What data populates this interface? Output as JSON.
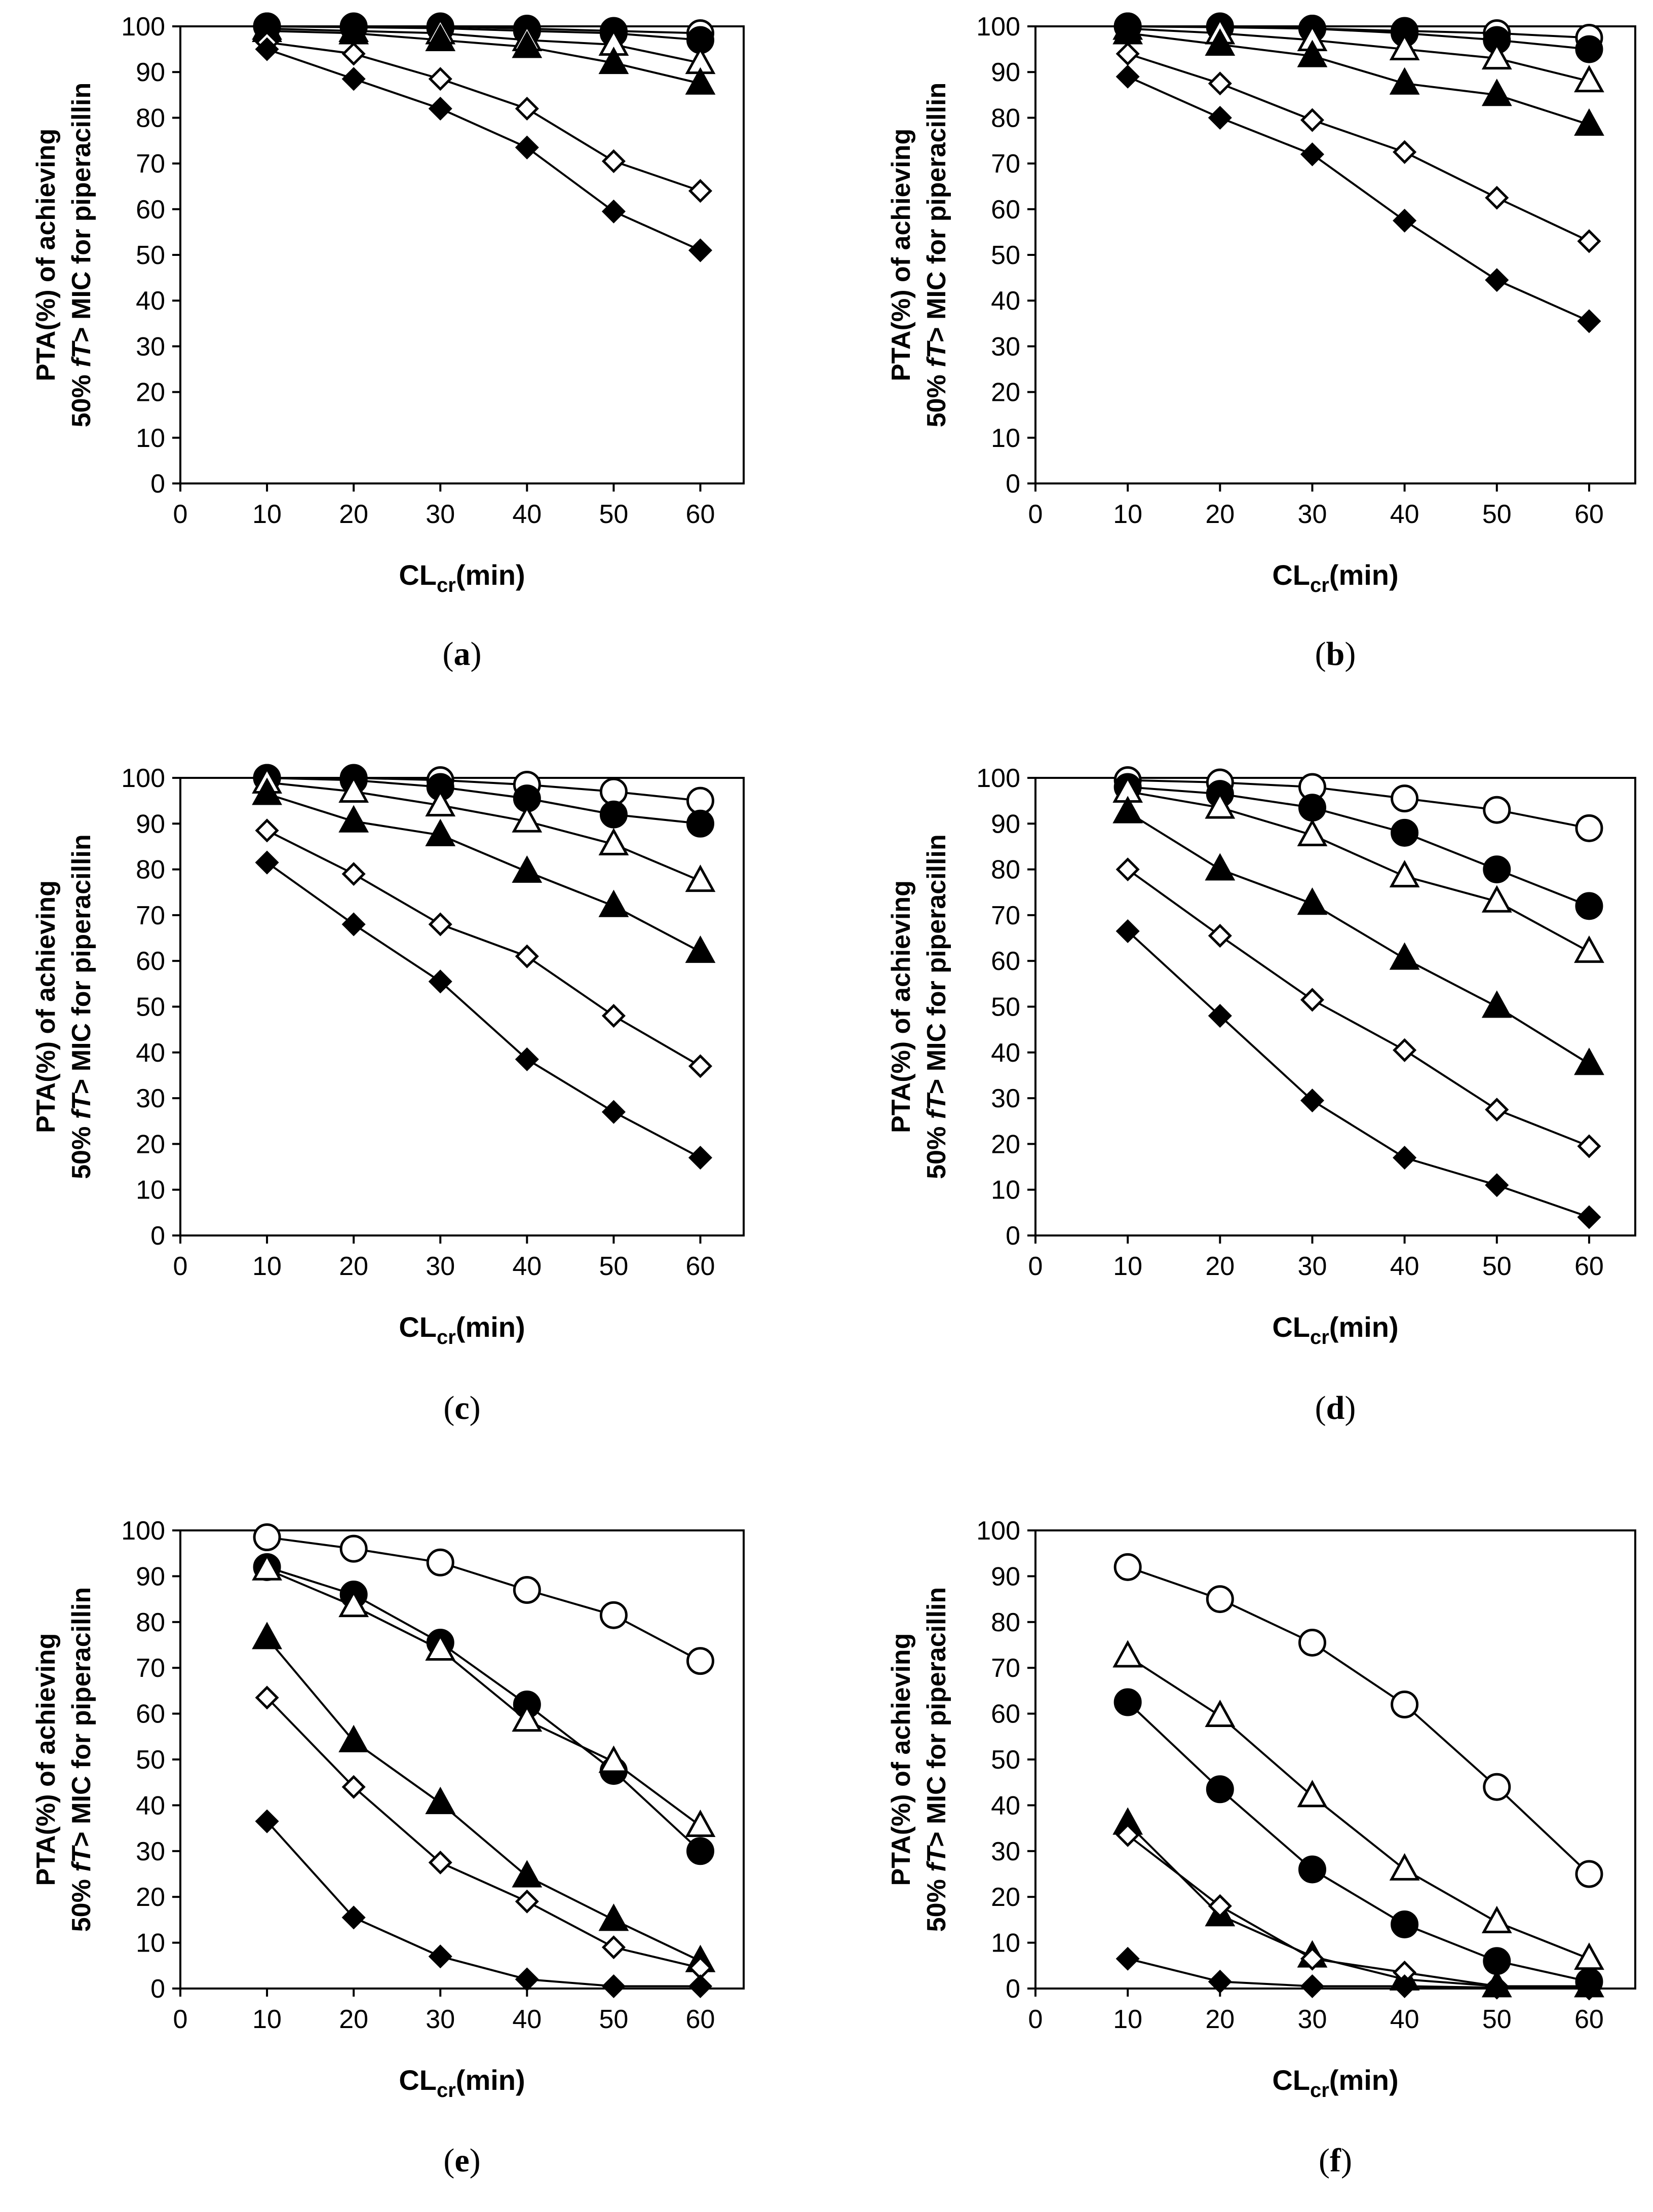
{
  "figure": {
    "ylabel_line1": "PTA(%) of achieving",
    "ylabel_line2_a": "50% ",
    "ylabel_line2_ft": "fT",
    "ylabel_line2_b": "> MIC for piperacillin",
    "xlabel_main": "CL",
    "xlabel_sub": "cr",
    "xlabel_suffix": "(min)"
  },
  "chart_data": [
    {
      "id": "a",
      "panel_label": "(a)",
      "type": "line",
      "x": [
        10,
        20,
        30,
        40,
        50,
        60
      ],
      "xlim": [
        0,
        65
      ],
      "ylim": [
        0,
        100
      ],
      "xticks": [
        0,
        10,
        20,
        30,
        40,
        50,
        60
      ],
      "yticks": [
        0,
        10,
        20,
        30,
        40,
        50,
        60,
        70,
        80,
        90,
        100
      ],
      "series": [
        {
          "marker": "open-circle",
          "values": [
            100,
            100,
            100,
            99.5,
            99,
            98.5
          ]
        },
        {
          "marker": "filled-circle",
          "values": [
            100,
            99.8,
            99.6,
            99,
            98.5,
            97
          ]
        },
        {
          "marker": "open-triangle",
          "values": [
            99.5,
            99,
            98.5,
            97,
            96,
            92
          ]
        },
        {
          "marker": "filled-triangle",
          "values": [
            99,
            98.5,
            97,
            95.5,
            92,
            87.5
          ]
        },
        {
          "marker": "open-diamond",
          "values": [
            96.5,
            94,
            88.5,
            82,
            70.5,
            64
          ]
        },
        {
          "marker": "filled-diamond",
          "values": [
            95,
            88.5,
            82,
            73.5,
            59.5,
            51
          ]
        }
      ]
    },
    {
      "id": "b",
      "panel_label": "(b)",
      "type": "line",
      "x": [
        10,
        20,
        30,
        40,
        50,
        60
      ],
      "xlim": [
        0,
        65
      ],
      "ylim": [
        0,
        100
      ],
      "xticks": [
        0,
        10,
        20,
        30,
        40,
        50,
        60
      ],
      "yticks": [
        0,
        10,
        20,
        30,
        40,
        50,
        60,
        70,
        80,
        90,
        100
      ],
      "series": [
        {
          "marker": "open-circle",
          "values": [
            100,
            100,
            99.5,
            99,
            98.5,
            97.5
          ]
        },
        {
          "marker": "filled-circle",
          "values": [
            100,
            99.8,
            99.5,
            98.5,
            97,
            95
          ]
        },
        {
          "marker": "open-triangle",
          "values": [
            99.5,
            98.5,
            97,
            95,
            93,
            88
          ]
        },
        {
          "marker": "filled-triangle",
          "values": [
            98.5,
            96,
            93.5,
            87.5,
            85,
            78.5
          ]
        },
        {
          "marker": "open-diamond",
          "values": [
            94,
            87.5,
            79.5,
            72.5,
            62.5,
            53
          ]
        },
        {
          "marker": "filled-diamond",
          "values": [
            89,
            80,
            72,
            57.5,
            44.5,
            35.5
          ]
        }
      ]
    },
    {
      "id": "c",
      "panel_label": "(c)",
      "type": "line",
      "x": [
        10,
        20,
        30,
        40,
        50,
        60
      ],
      "xlim": [
        0,
        65
      ],
      "ylim": [
        0,
        100
      ],
      "xticks": [
        0,
        10,
        20,
        30,
        40,
        50,
        60
      ],
      "yticks": [
        0,
        10,
        20,
        30,
        40,
        50,
        60,
        70,
        80,
        90,
        100
      ],
      "series": [
        {
          "marker": "open-circle",
          "values": [
            100,
            100,
            99.5,
            98.5,
            97,
            95
          ]
        },
        {
          "marker": "filled-circle",
          "values": [
            100,
            99.5,
            98,
            95.5,
            92,
            90
          ]
        },
        {
          "marker": "open-triangle",
          "values": [
            99,
            97,
            94,
            90.5,
            85.5,
            77.5
          ]
        },
        {
          "marker": "filled-triangle",
          "values": [
            96.5,
            90.5,
            87.5,
            79.5,
            72,
            62
          ]
        },
        {
          "marker": "open-diamond",
          "values": [
            88.5,
            79,
            68,
            61,
            48,
            37
          ]
        },
        {
          "marker": "filled-diamond",
          "values": [
            81.5,
            68,
            55.5,
            38.5,
            27,
            17
          ]
        }
      ]
    },
    {
      "id": "d",
      "panel_label": "(d)",
      "type": "line",
      "x": [
        10,
        20,
        30,
        40,
        50,
        60
      ],
      "xlim": [
        0,
        65
      ],
      "ylim": [
        0,
        100
      ],
      "xticks": [
        0,
        10,
        20,
        30,
        40,
        50,
        60
      ],
      "yticks": [
        0,
        10,
        20,
        30,
        40,
        50,
        60,
        70,
        80,
        90,
        100
      ],
      "series": [
        {
          "marker": "open-circle",
          "values": [
            99.5,
            99,
            98,
            95.5,
            93,
            89
          ]
        },
        {
          "marker": "filled-circle",
          "values": [
            98,
            96.5,
            93.5,
            88,
            80,
            72
          ]
        },
        {
          "marker": "open-triangle",
          "values": [
            97,
            93.5,
            87.5,
            78.5,
            73,
            62
          ]
        },
        {
          "marker": "filled-triangle",
          "values": [
            92.5,
            80,
            72.5,
            60.5,
            50,
            37.5
          ]
        },
        {
          "marker": "open-diamond",
          "values": [
            80,
            65.5,
            51.5,
            40.5,
            27.5,
            19.5
          ]
        },
        {
          "marker": "filled-diamond",
          "values": [
            66.5,
            48,
            29.5,
            17,
            11,
            4
          ]
        }
      ]
    },
    {
      "id": "e",
      "panel_label": "(e)",
      "type": "line",
      "x": [
        10,
        20,
        30,
        40,
        50,
        60
      ],
      "xlim": [
        0,
        65
      ],
      "ylim": [
        0,
        100
      ],
      "xticks": [
        0,
        10,
        20,
        30,
        40,
        50,
        60
      ],
      "yticks": [
        0,
        10,
        20,
        30,
        40,
        50,
        60,
        70,
        80,
        90,
        100
      ],
      "series": [
        {
          "marker": "open-circle",
          "values": [
            98.5,
            96,
            93,
            87,
            81.5,
            71.5
          ]
        },
        {
          "marker": "filled-circle",
          "values": [
            92,
            86,
            75.5,
            62,
            47.5,
            30
          ]
        },
        {
          "marker": "open-triangle",
          "values": [
            91.5,
            83.5,
            74,
            58.5,
            49.5,
            35.5
          ]
        },
        {
          "marker": "filled-triangle",
          "values": [
            76.5,
            54,
            40.5,
            24.5,
            15,
            6
          ]
        },
        {
          "marker": "open-diamond",
          "values": [
            63.5,
            44,
            27.5,
            19,
            9,
            4.5
          ]
        },
        {
          "marker": "filled-diamond",
          "values": [
            36.5,
            15.5,
            7,
            2,
            0.5,
            0.5
          ]
        }
      ]
    },
    {
      "id": "f",
      "panel_label": "(f)",
      "type": "line",
      "x": [
        10,
        20,
        30,
        40,
        50,
        60
      ],
      "xlim": [
        0,
        65
      ],
      "ylim": [
        0,
        100
      ],
      "xticks": [
        0,
        10,
        20,
        30,
        40,
        50,
        60
      ],
      "yticks": [
        0,
        10,
        20,
        30,
        40,
        50,
        60,
        70,
        80,
        90,
        100
      ],
      "series": [
        {
          "marker": "open-circle",
          "values": [
            92,
            85,
            75.5,
            62,
            44,
            25
          ]
        },
        {
          "marker": "open-triangle",
          "values": [
            72.5,
            59.5,
            42,
            26,
            14.5,
            6.5
          ]
        },
        {
          "marker": "filled-circle",
          "values": [
            62.5,
            43.5,
            26,
            14,
            6,
            1.5
          ]
        },
        {
          "marker": "filled-triangle",
          "values": [
            36,
            16,
            7,
            2,
            0.5,
            0.5
          ]
        },
        {
          "marker": "open-diamond",
          "values": [
            33.5,
            18,
            6.5,
            3.5,
            0.5,
            0
          ]
        },
        {
          "marker": "filled-diamond",
          "values": [
            6.5,
            1.5,
            0.5,
            0.5,
            0.2,
            0.2
          ]
        }
      ]
    }
  ]
}
